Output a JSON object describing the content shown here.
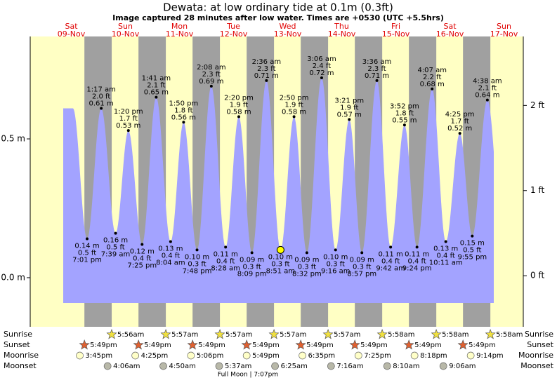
{
  "chart_data": {
    "type": "tide",
    "title": "Dewata: at low  ordinary tide at 0.1m (0.3ft)",
    "subtitle": "Image captured 28 minutes after low water. Times are +0530 (UTC +5.5hrs)",
    "days": [
      {
        "weekday": "Sat",
        "date": "09-Nov"
      },
      {
        "weekday": "Sun",
        "date": "10-Nov"
      },
      {
        "weekday": "Mon",
        "date": "11-Nov"
      },
      {
        "weekday": "Tue",
        "date": "12-Nov"
      },
      {
        "weekday": "Wed",
        "date": "13-Nov"
      },
      {
        "weekday": "Thu",
        "date": "14-Nov"
      },
      {
        "weekday": "Fri",
        "date": "15-Nov"
      },
      {
        "weekday": "Sat",
        "date": "16-Nov"
      },
      {
        "weekday": "Sun",
        "date": "17-Nov"
      }
    ],
    "ylim": [
      -0.177,
      0.869
    ],
    "yticks": [
      {
        "value": 0,
        "label": "0.0 m"
      },
      {
        "value": 0.5,
        "label": "0.5 m"
      }
    ],
    "y2lim": [
      -0.6,
      2.81
    ],
    "y2ticks": [
      {
        "value": 0,
        "label": "0 ft"
      },
      {
        "value": 1,
        "label": "1 ft"
      },
      {
        "value": 2,
        "label": "2 ft"
      }
    ],
    "colors": {
      "day": "#ffffc4",
      "night": "#a0a0a0",
      "water": "#a3a3ff",
      "weekday": "#e00000"
    },
    "tides": {
      "times": [
        "7:01 pm",
        "1:17 am",
        "7:39 am",
        "1:20 pm",
        "7:25 pm",
        "1:41 am",
        "8:04 am",
        "1:50 pm",
        "7:48 pm",
        "2:08 am",
        "8:28 am",
        "2:20 pm",
        "8:09 pm",
        "2:36 am",
        "8:51 am",
        "2:50 pm",
        "8:32 pm",
        "3:06 am",
        "9:16 am",
        "3:21 pm",
        "8:57 pm",
        "3:36 am",
        "9:42 am",
        "3:52 pm",
        "9:24 pm",
        "4:07 am",
        "10:11 am",
        "4:25 pm",
        "9:55 pm",
        "4:38 am"
      ],
      "values": [
        0.14,
        0.61,
        0.16,
        0.53,
        0.12,
        0.65,
        0.13,
        0.56,
        0.1,
        0.69,
        0.11,
        0.58,
        0.09,
        0.71,
        0.1,
        0.58,
        0.09,
        0.72,
        0.1,
        0.57,
        0.09,
        0.71,
        0.11,
        0.55,
        0.11,
        0.68,
        0.13,
        0.52,
        0.15,
        0.64
      ],
      "value_labels": [
        "0.14 m",
        "0.61 m",
        "0.16 m",
        "0.53 m",
        "0.12 m",
        "0.65 m",
        "0.13 m",
        "0.56 m",
        "0.10 m",
        "0.69 m",
        "0.11 m",
        "0.58 m",
        "0.09 m",
        "0.71 m",
        "0.10 m",
        "0.58 m",
        "0.09 m",
        "0.72 m",
        "0.10 m",
        "0.57 m",
        "0.09 m",
        "0.71 m",
        "0.11 m",
        "0.55 m",
        "0.11 m",
        "0.68 m",
        "0.13 m",
        "0.52 m",
        "0.15 m",
        "0.64 m"
      ],
      "ft_labels": [
        "0.5 ft",
        "2.0 ft",
        "0.5 ft",
        "1.7 ft",
        "0.4 ft",
        "2.1 ft",
        "0.4 ft",
        "1.8 ft",
        "0.3 ft",
        "2.3 ft",
        "0.4 ft",
        "1.9 ft",
        "0.3 ft",
        "2.3 ft",
        "0.3 ft",
        "1.9 ft",
        "0.3 ft",
        "2.4 ft",
        "0.3 ft",
        "1.9 ft",
        "0.3 ft",
        "2.3 ft",
        "0.4 ft",
        "1.8 ft",
        "0.4 ft",
        "2.2 ft",
        "0.4 ft",
        "1.7 ft",
        "0.5 ft",
        "2.1 ft"
      ]
    },
    "sunrise": {
      "label": "Sunrise",
      "times": [
        "5:56am",
        "5:57am",
        "5:57am",
        "5:57am",
        "5:57am",
        "5:58am",
        "5:58am",
        "5:58am"
      ]
    },
    "sunset": {
      "label": "Sunset",
      "times": [
        "5:49pm",
        "5:49pm",
        "5:49pm",
        "5:49pm",
        "5:49pm",
        "5:49pm",
        "5:49pm",
        "5:49pm"
      ]
    },
    "moonrise": {
      "label": "Moonrise",
      "times": [
        "3:45pm",
        "4:25pm",
        "5:06pm",
        "5:49pm",
        "6:35pm",
        "7:25pm",
        "8:18pm",
        "9:14pm"
      ]
    },
    "moonset": {
      "label": "Moonset",
      "times": [
        "4:06am",
        "4:50am",
        "5:37am",
        "6:25am",
        "7:16am",
        "8:10am",
        "9:06am"
      ]
    },
    "full_moon": "Full Moon | 7:07pm"
  }
}
